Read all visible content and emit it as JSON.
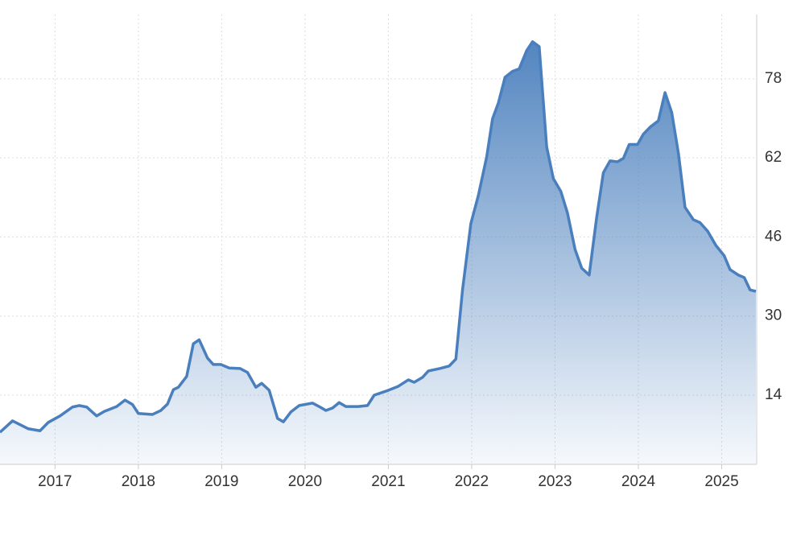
{
  "chart_data": {
    "type": "area",
    "x": [
      2016.34,
      2016.49,
      2016.68,
      2016.82,
      2016.92,
      2017.06,
      2017.21,
      2017.29,
      2017.38,
      2017.5,
      2017.59,
      2017.74,
      2017.84,
      2017.93,
      2018.0,
      2018.17,
      2018.27,
      2018.35,
      2018.42,
      2018.48,
      2018.58,
      2018.66,
      2018.73,
      2018.83,
      2018.9,
      2018.99,
      2019.09,
      2019.22,
      2019.31,
      2019.41,
      2019.48,
      2019.57,
      2019.67,
      2019.74,
      2019.83,
      2019.93,
      2020.09,
      2020.18,
      2020.25,
      2020.33,
      2020.41,
      2020.49,
      2020.64,
      2020.75,
      2020.83,
      2020.97,
      2021.12,
      2021.24,
      2021.31,
      2021.41,
      2021.48,
      2021.62,
      2021.73,
      2021.81,
      2021.89,
      2021.99,
      2022.08,
      2022.18,
      2022.25,
      2022.32,
      2022.4,
      2022.49,
      2022.57,
      2022.66,
      2022.73,
      2022.81,
      2022.9,
      2022.98,
      2023.07,
      2023.15,
      2023.24,
      2023.32,
      2023.41,
      2023.5,
      2023.58,
      2023.66,
      2023.75,
      2023.82,
      2023.89,
      2023.99,
      2024.06,
      2024.14,
      2024.24,
      2024.32,
      2024.4,
      2024.48,
      2024.56,
      2024.66,
      2024.74,
      2024.83,
      2024.93,
      2025.03,
      2025.1,
      2025.2,
      2025.27,
      2025.34,
      2025.41
    ],
    "series": [
      {
        "color": "#4a7fbd",
        "values": [
          6.5,
          8.8,
          7.2,
          6.8,
          8.5,
          9.8,
          11.6,
          11.9,
          11.6,
          9.8,
          10.7,
          11.7,
          13.0,
          12.1,
          10.3,
          10.1,
          10.9,
          12.2,
          15.1,
          15.6,
          17.8,
          24.4,
          25.2,
          21.5,
          20.2,
          20.2,
          19.5,
          19.4,
          18.6,
          15.6,
          16.4,
          15.0,
          9.3,
          8.6,
          10.6,
          11.9,
          12.4,
          11.6,
          10.9,
          11.4,
          12.5,
          11.7,
          11.7,
          11.9,
          14.0,
          14.8,
          15.8,
          17.1,
          16.6,
          17.6,
          18.9,
          19.4,
          19.9,
          21.3,
          35.3,
          48.7,
          54.4,
          62.2,
          69.9,
          73.1,
          78.3,
          79.5,
          80.0,
          83.7,
          85.5,
          84.5,
          64.2,
          57.8,
          55.2,
          50.8,
          43.5,
          39.7,
          38.3,
          50.0,
          59.0,
          61.4,
          61.2,
          61.9,
          64.7,
          64.7,
          66.8,
          68.2,
          69.5,
          75.2,
          71.2,
          63.0,
          52.0,
          49.5,
          48.9,
          47.2,
          44.3,
          42.2,
          39.4,
          38.3,
          37.8,
          35.3,
          35.0
        ]
      }
    ],
    "xlim": [
      2016.34,
      2025.42
    ],
    "xticks": [
      2017,
      2018,
      2019,
      2020,
      2021,
      2022,
      2023,
      2024,
      2025
    ],
    "ylim": [
      0,
      91
    ],
    "yticks": [
      14,
      30,
      46,
      62,
      78
    ],
    "y_axis_side": "right",
    "grid": true
  }
}
